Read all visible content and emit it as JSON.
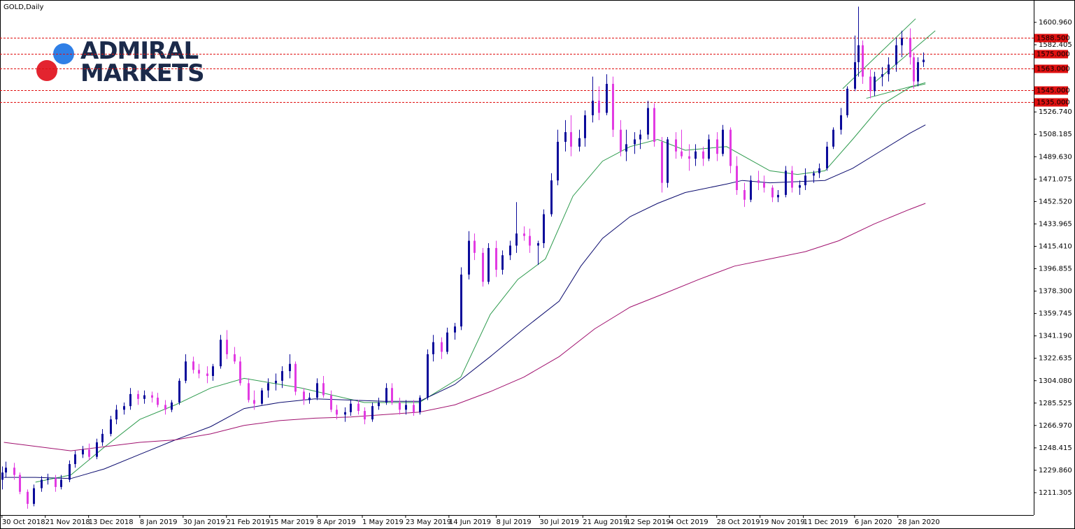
{
  "chart_data": {
    "type": "candlestick",
    "title": "GOLD,Daily",
    "watermark": [
      "ADMIRAL",
      "MARKETS"
    ],
    "up_color": "#0a0a9a",
    "down_color": "#e23be2",
    "xlim": [
      "2018-10-29",
      "2020-04-06"
    ],
    "ylim": [
      1192.77,
      1619.49
    ],
    "yticks": [
      1211.305,
      {
        "value": 1229.86,
        "label": "1229.860"
      },
      1248.415,
      {
        "value": 1266.97,
        "label": "1266.970"
      },
      1285.525,
      {
        "value": 1304.08,
        "label": "1304.080"
      },
      1322.635,
      {
        "value": 1341.19,
        "label": "1341.190"
      },
      1359.745,
      {
        "value": 1378.3,
        "label": "1378.300"
      },
      1396.855,
      {
        "value": 1415.41,
        "label": "1415.410"
      },
      1433.965,
      {
        "value": 1452.52,
        "label": "1452.520"
      },
      1471.075,
      {
        "value": 1489.63,
        "label": "1489.630"
      },
      1508.185,
      {
        "value": 1526.74,
        "label": "1526.740"
      },
      1582.405,
      {
        "value": 1600.96,
        "label": "1600.960"
      }
    ],
    "xticks": [
      {
        "value": "2018-10-30",
        "label": "30 Oct 2018"
      },
      {
        "value": "2018-11-21",
        "label": "21 Nov 2018"
      },
      {
        "value": "2018-12-13",
        "label": "13 Dec 2018"
      },
      {
        "value": "2019-01-08",
        "label": "8 Jan 2019"
      },
      {
        "value": "2019-01-30",
        "label": "30 Jan 2019"
      },
      {
        "value": "2019-02-21",
        "label": "21 Feb 2019"
      },
      {
        "value": "2019-03-15",
        "label": "15 Mar 2019"
      },
      {
        "value": "2019-04-08",
        "label": "8 Apr 2019"
      },
      {
        "value": "2019-05-01",
        "label": "1 May 2019"
      },
      {
        "value": "2019-05-23",
        "label": "23 May 2019"
      },
      {
        "value": "2019-06-14",
        "label": "14 Jun 2019"
      },
      {
        "value": "2019-07-08",
        "label": "8 Jul 2019"
      },
      {
        "value": "2019-07-30",
        "label": "30 Jul 2019"
      },
      {
        "value": "2019-08-21",
        "label": "21 Aug 2019"
      },
      {
        "value": "2019-09-12",
        "label": "12 Sep 2019"
      },
      {
        "value": "2019-10-04",
        "label": "4 Oct 2019"
      },
      {
        "value": "2019-10-28",
        "label": "28 Oct 2019"
      },
      {
        "value": "2019-11-19",
        "label": "19 Nov 2019"
      },
      {
        "value": "2019-12-11",
        "label": "11 Dec 2019"
      },
      {
        "value": "2020-01-06",
        "label": "6 Jan 2020"
      },
      {
        "value": "2020-01-28",
        "label": "28 Jan 2020"
      }
    ],
    "levels_color": "#e01010",
    "levels": [
      {
        "value": 1588.5,
        "label": "1588.500"
      },
      {
        "value": 1575,
        "label": "1575.000"
      },
      {
        "value": 1563,
        "label": "1563.000"
      },
      {
        "value": 1545,
        "label": "1545.000"
      },
      {
        "value": 1535,
        "label": "1535.000"
      }
    ],
    "trendlines_color": "#2e9b4e",
    "trendlines": [
      {
        "x": [
          "2019-12-31",
          "2020-02-06"
        ],
        "values": [
          1546,
          1604
        ]
      },
      {
        "x": [
          "2020-01-16",
          "2020-02-16"
        ],
        "values": [
          1551,
          1594
        ]
      },
      {
        "x": [
          "2020-01-12",
          "2020-02-11"
        ],
        "values": [
          1538,
          1551
        ]
      }
    ],
    "moving_averages": [
      {
        "color": "#2e9b4e",
        "x": [
          "2018-11-16",
          "2018-12-04",
          "2018-12-21",
          "2019-01-08",
          "2019-01-26",
          "2019-02-13",
          "2019-03-02",
          "2019-03-31",
          "2019-05-02",
          "2019-05-30",
          "2019-06-20",
          "2019-07-05",
          "2019-07-19",
          "2019-08-02",
          "2019-08-16",
          "2019-08-31",
          "2019-09-14",
          "2019-09-28",
          "2019-10-12",
          "2019-11-02",
          "2019-11-24",
          "2019-12-08",
          "2019-12-22",
          "2020-01-05",
          "2020-01-20",
          "2020-02-03",
          "2020-02-11"
        ],
        "values": [
          1220,
          1226,
          1249,
          1272,
          1284,
          1298,
          1306,
          1298,
          1286,
          1286,
          1307,
          1359,
          1388,
          1405,
          1457,
          1486,
          1498,
          1504,
          1495,
          1498,
          1478,
          1475,
          1478,
          1504,
          1533,
          1547,
          1550
        ]
      },
      {
        "color": "#0b0b6e",
        "x": [
          "2018-10-31",
          "2018-11-16",
          "2018-12-04",
          "2018-12-21",
          "2019-01-08",
          "2019-01-26",
          "2019-02-13",
          "2019-03-02",
          "2019-03-20",
          "2019-04-07",
          "2019-04-25",
          "2019-05-12",
          "2019-05-30",
          "2019-06-17",
          "2019-07-05",
          "2019-07-22",
          "2019-08-09",
          "2019-08-20",
          "2019-08-31",
          "2019-09-14",
          "2019-09-28",
          "2019-10-12",
          "2019-11-02",
          "2019-11-10",
          "2019-11-24",
          "2019-12-22",
          "2020-01-05",
          "2020-01-20",
          "2020-02-03",
          "2020-02-11"
        ],
        "values": [
          1224,
          1224,
          1223,
          1231,
          1243,
          1255,
          1266,
          1281,
          1286,
          1289,
          1288,
          1287,
          1287,
          1301,
          1324,
          1347,
          1370,
          1399,
          1422,
          1440,
          1451,
          1460,
          1467,
          1470,
          1468,
          1470,
          1480,
          1495,
          1509,
          1516
        ]
      },
      {
        "color": "#a0106e",
        "x": [
          "2018-10-31",
          "2018-12-04",
          "2019-01-08",
          "2019-01-26",
          "2019-02-13",
          "2019-03-02",
          "2019-03-20",
          "2019-04-07",
          "2019-04-25",
          "2019-05-30",
          "2019-06-17",
          "2019-07-05",
          "2019-07-22",
          "2019-08-09",
          "2019-08-27",
          "2019-09-14",
          "2019-10-01",
          "2019-10-19",
          "2019-11-06",
          "2019-11-24",
          "2019-12-12",
          "2019-12-29",
          "2020-01-16",
          "2020-02-03",
          "2020-02-11"
        ],
        "values": [
          1253,
          1246,
          1253,
          1255,
          1260,
          1267,
          1271,
          1273,
          1274,
          1278,
          1284,
          1295,
          1307,
          1324,
          1347,
          1365,
          1376,
          1388,
          1399,
          1405,
          1411,
          1420,
          1434,
          1446,
          1451
        ]
      }
    ],
    "x": [
      "2018-10-30",
      "2018-11-01",
      "2018-11-05",
      "2018-11-08",
      "2018-11-12",
      "2018-11-15",
      "2018-11-19",
      "2018-11-22",
      "2018-11-26",
      "2018-11-29",
      "2018-12-03",
      "2018-12-06",
      "2018-12-10",
      "2018-12-13",
      "2018-12-17",
      "2018-12-20",
      "2018-12-24",
      "2018-12-27",
      "2018-12-31",
      "2019-01-03",
      "2019-01-07",
      "2019-01-10",
      "2019-01-14",
      "2019-01-17",
      "2019-01-21",
      "2019-01-24",
      "2019-01-28",
      "2019-01-31",
      "2019-02-04",
      "2019-02-07",
      "2019-02-11",
      "2019-02-14",
      "2019-02-18",
      "2019-02-21",
      "2019-02-25",
      "2019-02-28",
      "2019-03-04",
      "2019-03-07",
      "2019-03-11",
      "2019-03-14",
      "2019-03-18",
      "2019-03-21",
      "2019-03-25",
      "2019-03-28",
      "2019-04-01",
      "2019-04-04",
      "2019-04-08",
      "2019-04-11",
      "2019-04-15",
      "2019-04-18",
      "2019-04-22",
      "2019-04-25",
      "2019-04-29",
      "2019-05-02",
      "2019-05-06",
      "2019-05-09",
      "2019-05-13",
      "2019-05-16",
      "2019-05-20",
      "2019-05-23",
      "2019-05-27",
      "2019-05-30",
      "2019-06-03",
      "2019-06-06",
      "2019-06-10",
      "2019-06-13",
      "2019-06-17",
      "2019-06-20",
      "2019-06-24",
      "2019-06-27",
      "2019-07-01",
      "2019-07-04",
      "2019-07-08",
      "2019-07-11",
      "2019-07-15",
      "2019-07-18",
      "2019-07-22",
      "2019-07-25",
      "2019-07-29",
      "2019-08-01",
      "2019-08-05",
      "2019-08-08",
      "2019-08-12",
      "2019-08-15",
      "2019-08-19",
      "2019-08-22",
      "2019-08-26",
      "2019-08-29",
      "2019-09-02",
      "2019-09-05",
      "2019-09-09",
      "2019-09-12",
      "2019-09-16",
      "2019-09-19",
      "2019-09-23",
      "2019-09-26",
      "2019-09-30",
      "2019-10-03",
      "2019-10-07",
      "2019-10-10",
      "2019-10-14",
      "2019-10-17",
      "2019-10-21",
      "2019-10-24",
      "2019-10-28",
      "2019-10-31",
      "2019-11-04",
      "2019-11-07",
      "2019-11-11",
      "2019-11-14",
      "2019-11-18",
      "2019-11-21",
      "2019-11-25",
      "2019-11-28",
      "2019-12-02",
      "2019-12-05",
      "2019-12-09",
      "2019-12-12",
      "2019-12-16",
      "2019-12-19",
      "2019-12-23",
      "2019-12-26",
      "2019-12-30",
      "2020-01-02",
      "2020-01-06",
      "2020-01-08",
      "2020-01-10",
      "2020-01-14",
      "2020-01-16",
      "2020-01-20",
      "2020-01-23",
      "2020-01-27",
      "2020-01-30",
      "2020-02-03",
      "2020-02-05",
      "2020-02-07",
      "2020-02-10"
    ],
    "open": [
      1222,
      1228,
      1232,
      1226,
      1212,
      1202,
      1215,
      1222,
      1223,
      1216,
      1222,
      1235,
      1243,
      1247,
      1241,
      1253,
      1260,
      1272,
      1280,
      1283,
      1293,
      1289,
      1292,
      1290,
      1284,
      1280,
      1286,
      1304,
      1320,
      1313,
      1310,
      1308,
      1316,
      1338,
      1326,
      1320,
      1302,
      1288,
      1285,
      1296,
      1302,
      1304,
      1312,
      1318,
      1295,
      1288,
      1290,
      1302,
      1292,
      1280,
      1276,
      1278,
      1285,
      1279,
      1272,
      1283,
      1286,
      1298,
      1286,
      1280,
      1284,
      1278,
      1290,
      1326,
      1336,
      1328,
      1344,
      1349,
      1392,
      1420,
      1410,
      1386,
      1414,
      1396,
      1408,
      1416,
      1426,
      1424,
      1416,
      1418,
      1442,
      1470,
      1502,
      1510,
      1498,
      1505,
      1524,
      1536,
      1526,
      1550,
      1512,
      1494,
      1500,
      1504,
      1508,
      1530,
      1502,
      1468,
      1504,
      1494,
      1490,
      1488,
      1494,
      1488,
      1504,
      1492,
      1512,
      1482,
      1462,
      1454,
      1470,
      1468,
      1464,
      1456,
      1458,
      1478,
      1464,
      1466,
      1474,
      1476,
      1480,
      1498,
      1512,
      1524,
      1546,
      1568,
      1582,
      1556,
      1544,
      1556,
      1558,
      1566,
      1582,
      1588,
      1572,
      1552,
      1568
    ],
    "high": [
      1233,
      1237,
      1236,
      1228,
      1214,
      1218,
      1225,
      1227,
      1226,
      1226,
      1238,
      1246,
      1250,
      1252,
      1256,
      1264,
      1275,
      1284,
      1286,
      1298,
      1296,
      1296,
      1295,
      1294,
      1288,
      1288,
      1306,
      1326,
      1324,
      1318,
      1316,
      1318,
      1342,
      1346,
      1332,
      1324,
      1306,
      1296,
      1298,
      1306,
      1310,
      1316,
      1326,
      1320,
      1298,
      1294,
      1306,
      1308,
      1296,
      1284,
      1282,
      1288,
      1288,
      1282,
      1286,
      1290,
      1302,
      1302,
      1290,
      1288,
      1288,
      1292,
      1330,
      1342,
      1340,
      1348,
      1352,
      1398,
      1428,
      1426,
      1414,
      1418,
      1420,
      1412,
      1420,
      1452,
      1432,
      1430,
      1420,
      1446,
      1476,
      1512,
      1520,
      1524,
      1512,
      1528,
      1556,
      1548,
      1558,
      1556,
      1520,
      1512,
      1510,
      1512,
      1536,
      1534,
      1506,
      1506,
      1510,
      1512,
      1500,
      1500,
      1498,
      1508,
      1510,
      1516,
      1514,
      1490,
      1468,
      1474,
      1478,
      1474,
      1466,
      1462,
      1482,
      1482,
      1470,
      1480,
      1478,
      1484,
      1502,
      1514,
      1530,
      1548,
      1590,
      1614,
      1586,
      1562,
      1560,
      1564,
      1572,
      1588,
      1594,
      1596,
      1576,
      1572,
      1576
    ],
    "low": [
      1214,
      1224,
      1222,
      1210,
      1198,
      1200,
      1212,
      1218,
      1212,
      1214,
      1220,
      1232,
      1240,
      1238,
      1239,
      1250,
      1258,
      1268,
      1276,
      1280,
      1284,
      1285,
      1286,
      1282,
      1276,
      1278,
      1284,
      1302,
      1310,
      1306,
      1302,
      1304,
      1314,
      1322,
      1318,
      1300,
      1286,
      1280,
      1284,
      1290,
      1296,
      1298,
      1306,
      1292,
      1284,
      1285,
      1288,
      1290,
      1278,
      1272,
      1270,
      1275,
      1276,
      1268,
      1270,
      1280,
      1284,
      1284,
      1276,
      1276,
      1275,
      1276,
      1288,
      1320,
      1322,
      1326,
      1338,
      1346,
      1388,
      1404,
      1382,
      1384,
      1390,
      1392,
      1404,
      1410,
      1420,
      1410,
      1400,
      1414,
      1440,
      1466,
      1494,
      1490,
      1494,
      1498,
      1518,
      1520,
      1524,
      1506,
      1490,
      1486,
      1492,
      1496,
      1504,
      1498,
      1460,
      1464,
      1488,
      1488,
      1478,
      1482,
      1482,
      1486,
      1486,
      1490,
      1476,
      1458,
      1448,
      1452,
      1462,
      1460,
      1452,
      1452,
      1456,
      1460,
      1458,
      1462,
      1468,
      1472,
      1478,
      1496,
      1508,
      1522,
      1544,
      1556,
      1550,
      1538,
      1540,
      1548,
      1552,
      1560,
      1572,
      1566,
      1546,
      1548,
      1564
    ],
    "close": [
      1228,
      1232,
      1226,
      1212,
      1202,
      1215,
      1222,
      1223,
      1216,
      1222,
      1235,
      1243,
      1247,
      1241,
      1253,
      1260,
      1272,
      1280,
      1283,
      1293,
      1289,
      1292,
      1290,
      1284,
      1280,
      1286,
      1304,
      1320,
      1313,
      1310,
      1308,
      1316,
      1338,
      1326,
      1320,
      1302,
      1288,
      1285,
      1296,
      1302,
      1304,
      1312,
      1318,
      1295,
      1288,
      1290,
      1302,
      1292,
      1280,
      1276,
      1278,
      1285,
      1279,
      1272,
      1283,
      1286,
      1298,
      1286,
      1280,
      1284,
      1278,
      1290,
      1326,
      1336,
      1328,
      1344,
      1349,
      1392,
      1420,
      1410,
      1386,
      1414,
      1396,
      1408,
      1416,
      1426,
      1424,
      1416,
      1418,
      1442,
      1470,
      1502,
      1510,
      1498,
      1505,
      1524,
      1536,
      1526,
      1550,
      1512,
      1494,
      1500,
      1504,
      1508,
      1530,
      1502,
      1468,
      1504,
      1494,
      1490,
      1488,
      1494,
      1488,
      1504,
      1492,
      1512,
      1482,
      1462,
      1454,
      1470,
      1468,
      1464,
      1456,
      1458,
      1478,
      1464,
      1466,
      1474,
      1476,
      1480,
      1498,
      1512,
      1524,
      1546,
      1568,
      1582,
      1556,
      1544,
      1556,
      1558,
      1566,
      1582,
      1588,
      1572,
      1552,
      1568,
      1570
    ]
  }
}
